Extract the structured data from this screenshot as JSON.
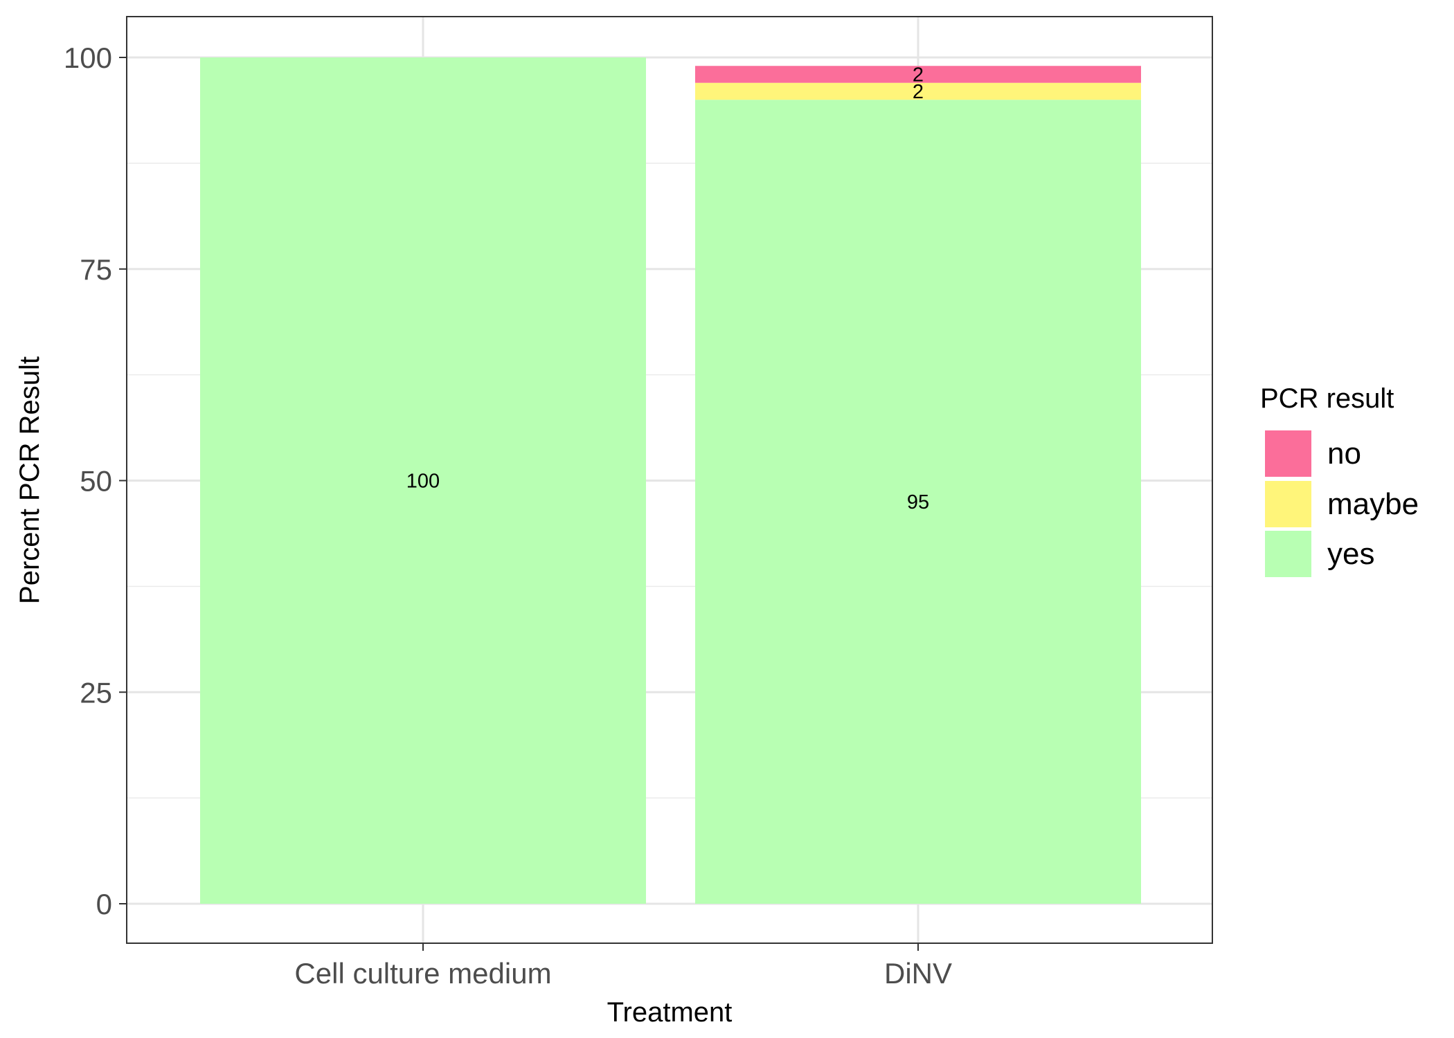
{
  "chart_data": {
    "type": "bar",
    "stacked": true,
    "categories": [
      "Cell culture medium",
      "DiNV"
    ],
    "series": [
      {
        "name": "yes",
        "values": [
          100,
          95
        ],
        "labels": [
          "100",
          "95"
        ],
        "color": "#B8FFB3"
      },
      {
        "name": "maybe",
        "values": [
          0,
          2
        ],
        "labels": [
          "",
          "2"
        ],
        "color": "#FFF57A"
      },
      {
        "name": "no",
        "values": [
          0,
          2
        ],
        "labels": [
          "",
          "2"
        ],
        "color": "#FB6E9A"
      }
    ],
    "xlabel": "Treatment",
    "ylabel": "Percent PCR Result",
    "ylim": [
      -5,
      105
    ],
    "yticks": [
      0,
      25,
      50,
      75,
      100
    ],
    "grid": true,
    "legend": {
      "title": "PCR result",
      "position": "right",
      "entries": [
        {
          "label": "no",
          "color": "#FB6E9A"
        },
        {
          "label": "maybe",
          "color": "#FFF57A"
        },
        {
          "label": "yes",
          "color": "#B8FFB3"
        }
      ]
    }
  }
}
